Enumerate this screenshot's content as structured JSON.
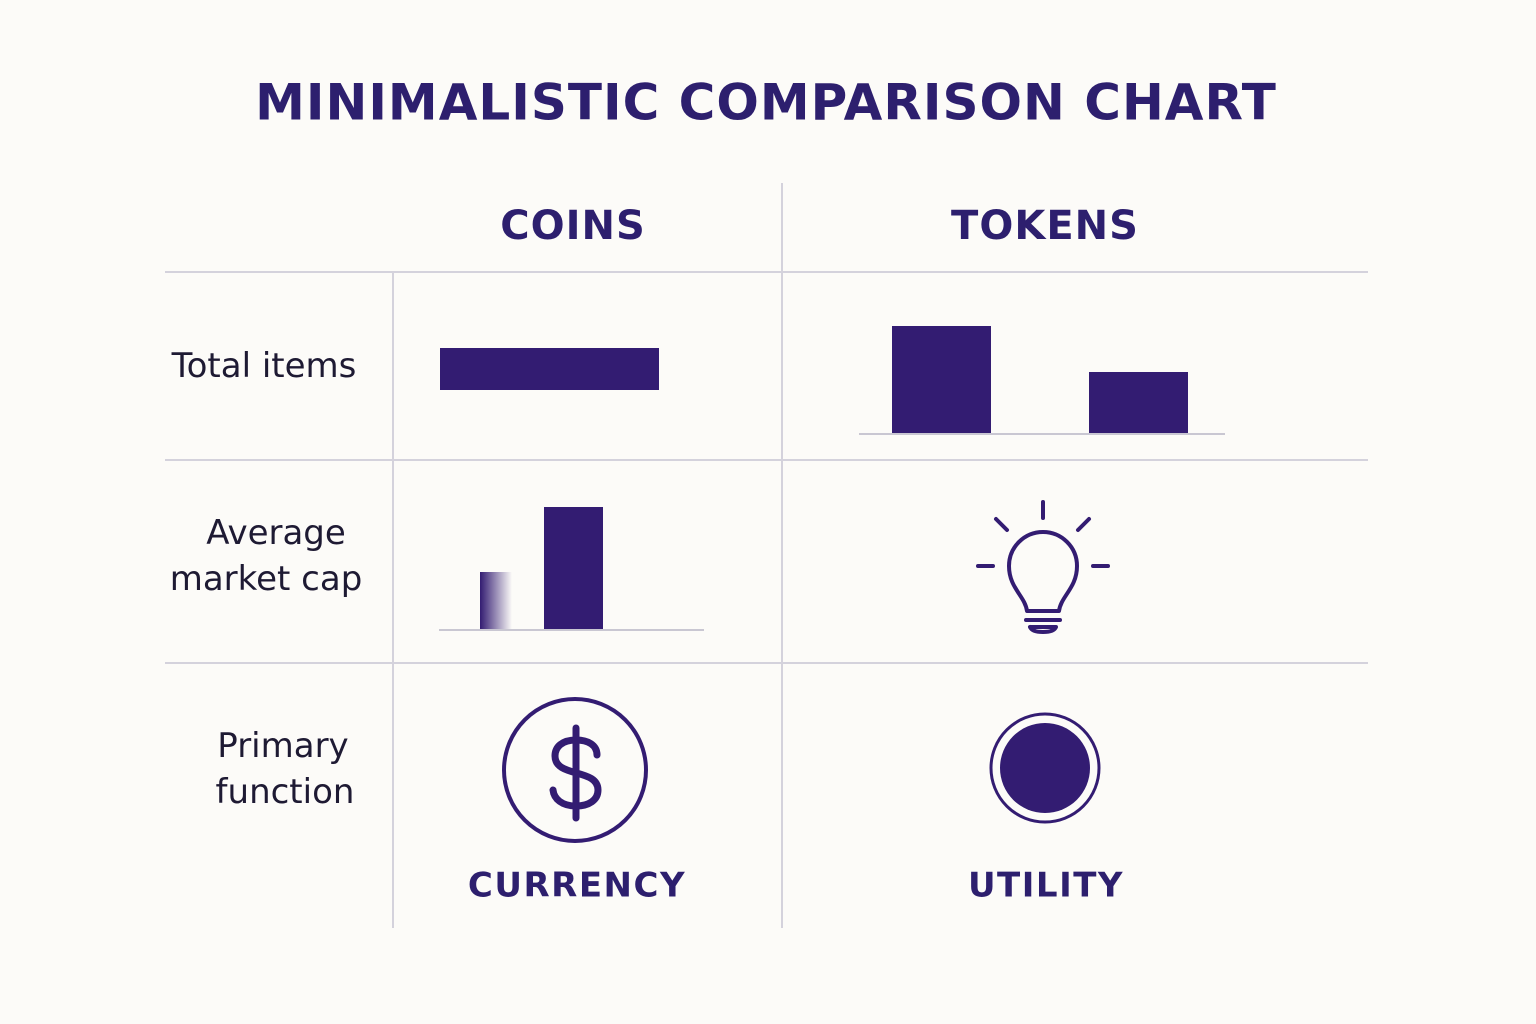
{
  "title": "MINIMALISTIC COMPARISON CHART",
  "columns": [
    "COINS",
    "TOKENS"
  ],
  "rows": [
    {
      "label": [
        "Total items"
      ]
    },
    {
      "label": [
        "Average",
        "market cap"
      ]
    },
    {
      "label": [
        "Primary",
        "function"
      ],
      "cells": [
        "CURRENCY",
        "UTILITY"
      ]
    }
  ]
}
